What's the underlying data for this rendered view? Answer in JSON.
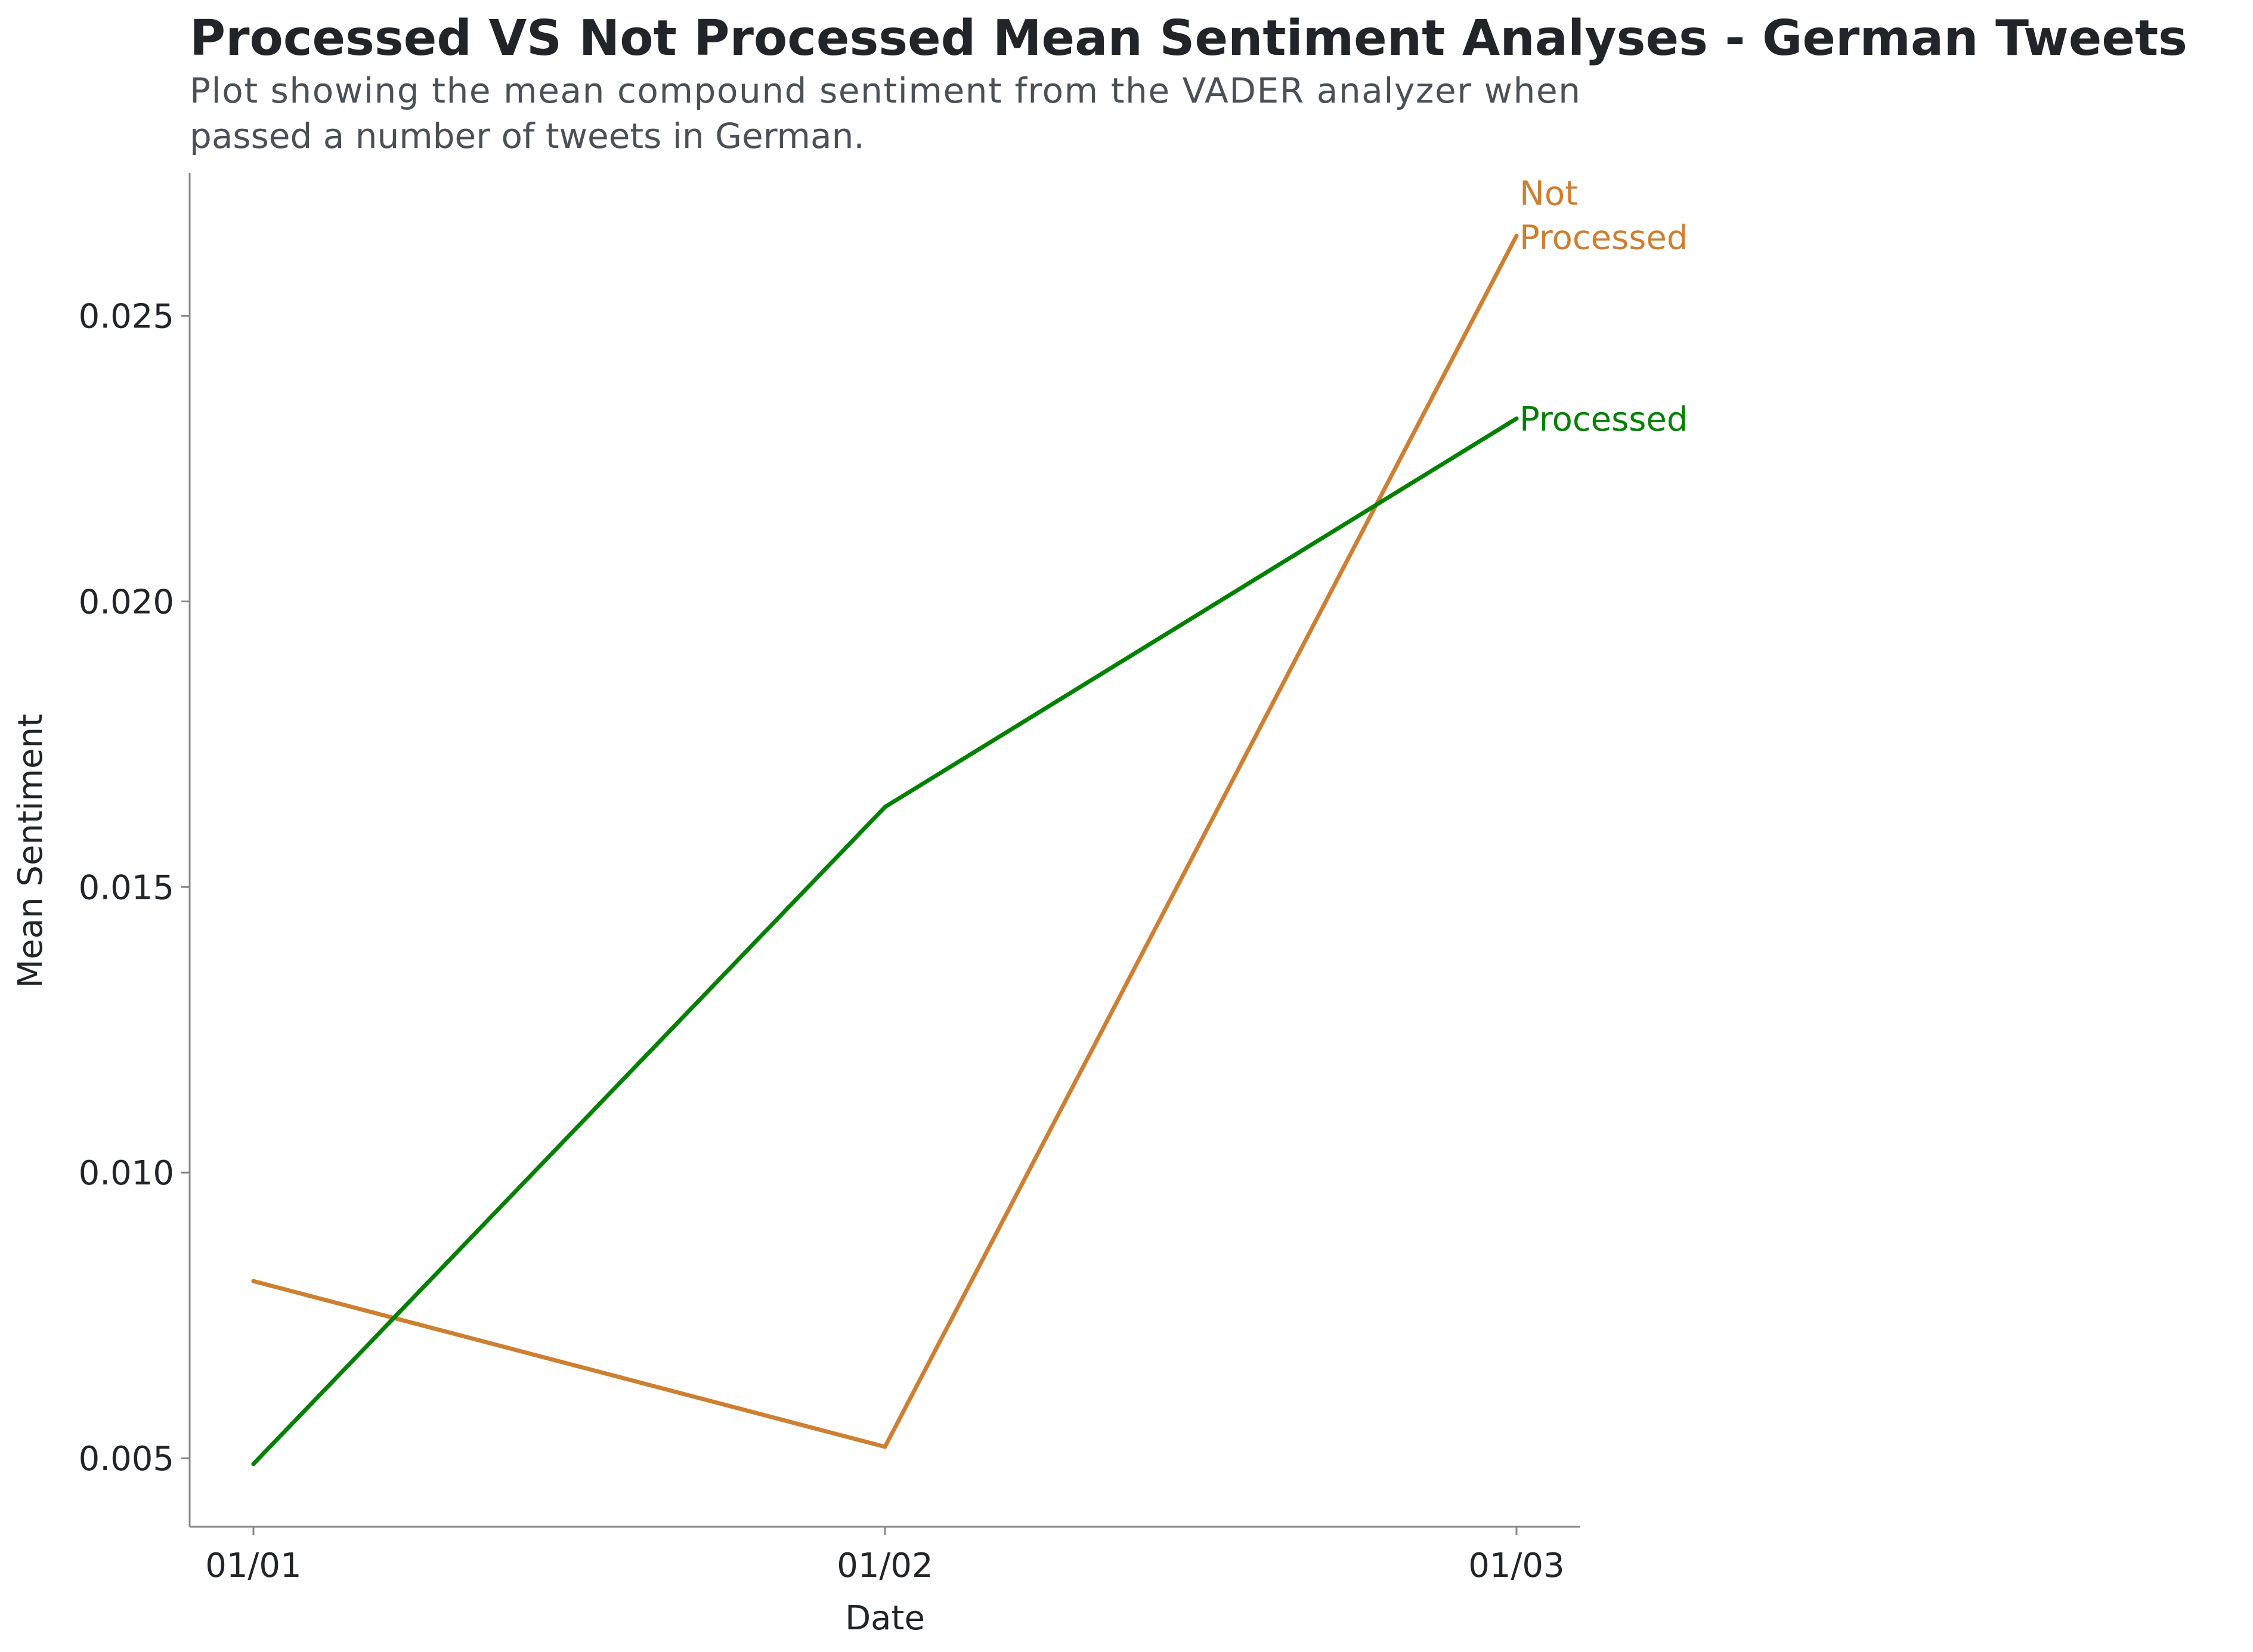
{
  "chart_data": {
    "type": "line",
    "title": "Processed VS Not Processed Mean Sentiment Analyses - German Tweets",
    "subtitle_lines": [
      "Plot showing the mean compound sentiment from the VADER analyzer when",
      "passed a number of tweets in German."
    ],
    "xlabel": "Date",
    "ylabel": "Mean Sentiment",
    "categories": [
      "01/01",
      "01/02",
      "01/03"
    ],
    "yticks": [
      0.005,
      0.01,
      0.015,
      0.02,
      0.025
    ],
    "ytick_labels": [
      "0.005",
      "0.010",
      "0.015",
      "0.020",
      "0.025"
    ],
    "ylim": [
      0.0038,
      0.0275
    ],
    "grid": false,
    "legend": "direct labels at line ends",
    "series": [
      {
        "key": "not-processed",
        "name": "Not Processed",
        "label_lines": [
          "Not",
          "Processed"
        ],
        "color": "#cd7f32",
        "values": [
          0.0081,
          0.0052,
          0.0264
        ]
      },
      {
        "key": "processed",
        "name": "Processed",
        "label_lines": [
          "Processed"
        ],
        "color": "#008000",
        "values": [
          0.0049,
          0.0164,
          0.0232
        ]
      }
    ]
  }
}
